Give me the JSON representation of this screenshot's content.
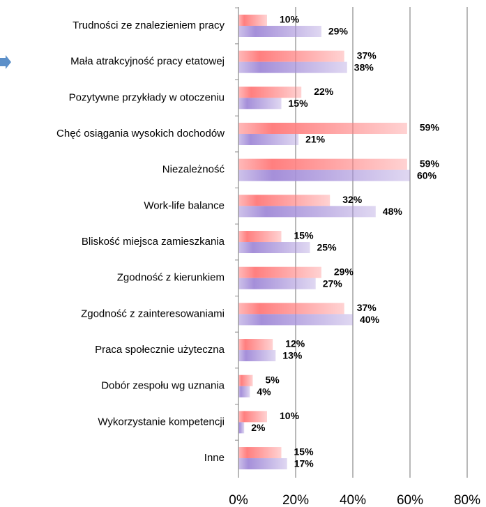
{
  "chart_data": {
    "type": "bar",
    "orientation": "horizontal",
    "categories": [
      "Trudności ze znalezieniem pracy",
      "Mała atrakcyjność pracy etatowej",
      "Pozytywne przykłady w otoczeniu",
      "Chęć osiągania wysokich dochodów",
      "Niezależność",
      "Work-life balance",
      "Bliskość miejsca zamieszkania",
      "Zgodność z kierunkiem",
      "Zgodność z zainteresowaniami",
      "Praca społecznie użyteczna",
      "Dobór zespołu wg uznania",
      "Wykorzystanie kompetencji",
      "Inne"
    ],
    "series": [
      {
        "color": "#ff7f7f",
        "values": [
          10,
          37,
          22,
          59,
          59,
          32,
          15,
          29,
          37,
          12,
          5,
          10,
          15
        ],
        "value_labels": [
          "10%",
          "37%",
          "22%",
          "59%",
          "59%",
          "32%",
          "15%",
          "29%",
          "37%",
          "12%",
          "5%",
          "10%",
          "15%"
        ]
      },
      {
        "color": "#a58fd9",
        "values": [
          29,
          38,
          15,
          21,
          60,
          48,
          25,
          27,
          40,
          13,
          4,
          2,
          17
        ],
        "value_labels": [
          "29%",
          "38%",
          "15%",
          "21%",
          "60%",
          "48%",
          "25%",
          "27%",
          "40%",
          "13%",
          "4%",
          "2%",
          "17%"
        ]
      }
    ],
    "xlim": [
      0,
      80
    ],
    "xticks": [
      {
        "value": 0,
        "label": "0%"
      },
      {
        "value": 20,
        "label": "20%"
      },
      {
        "value": 40,
        "label": "40%"
      },
      {
        "value": 60,
        "label": "60%"
      },
      {
        "value": 80,
        "label": "80%"
      }
    ],
    "grid": true
  }
}
